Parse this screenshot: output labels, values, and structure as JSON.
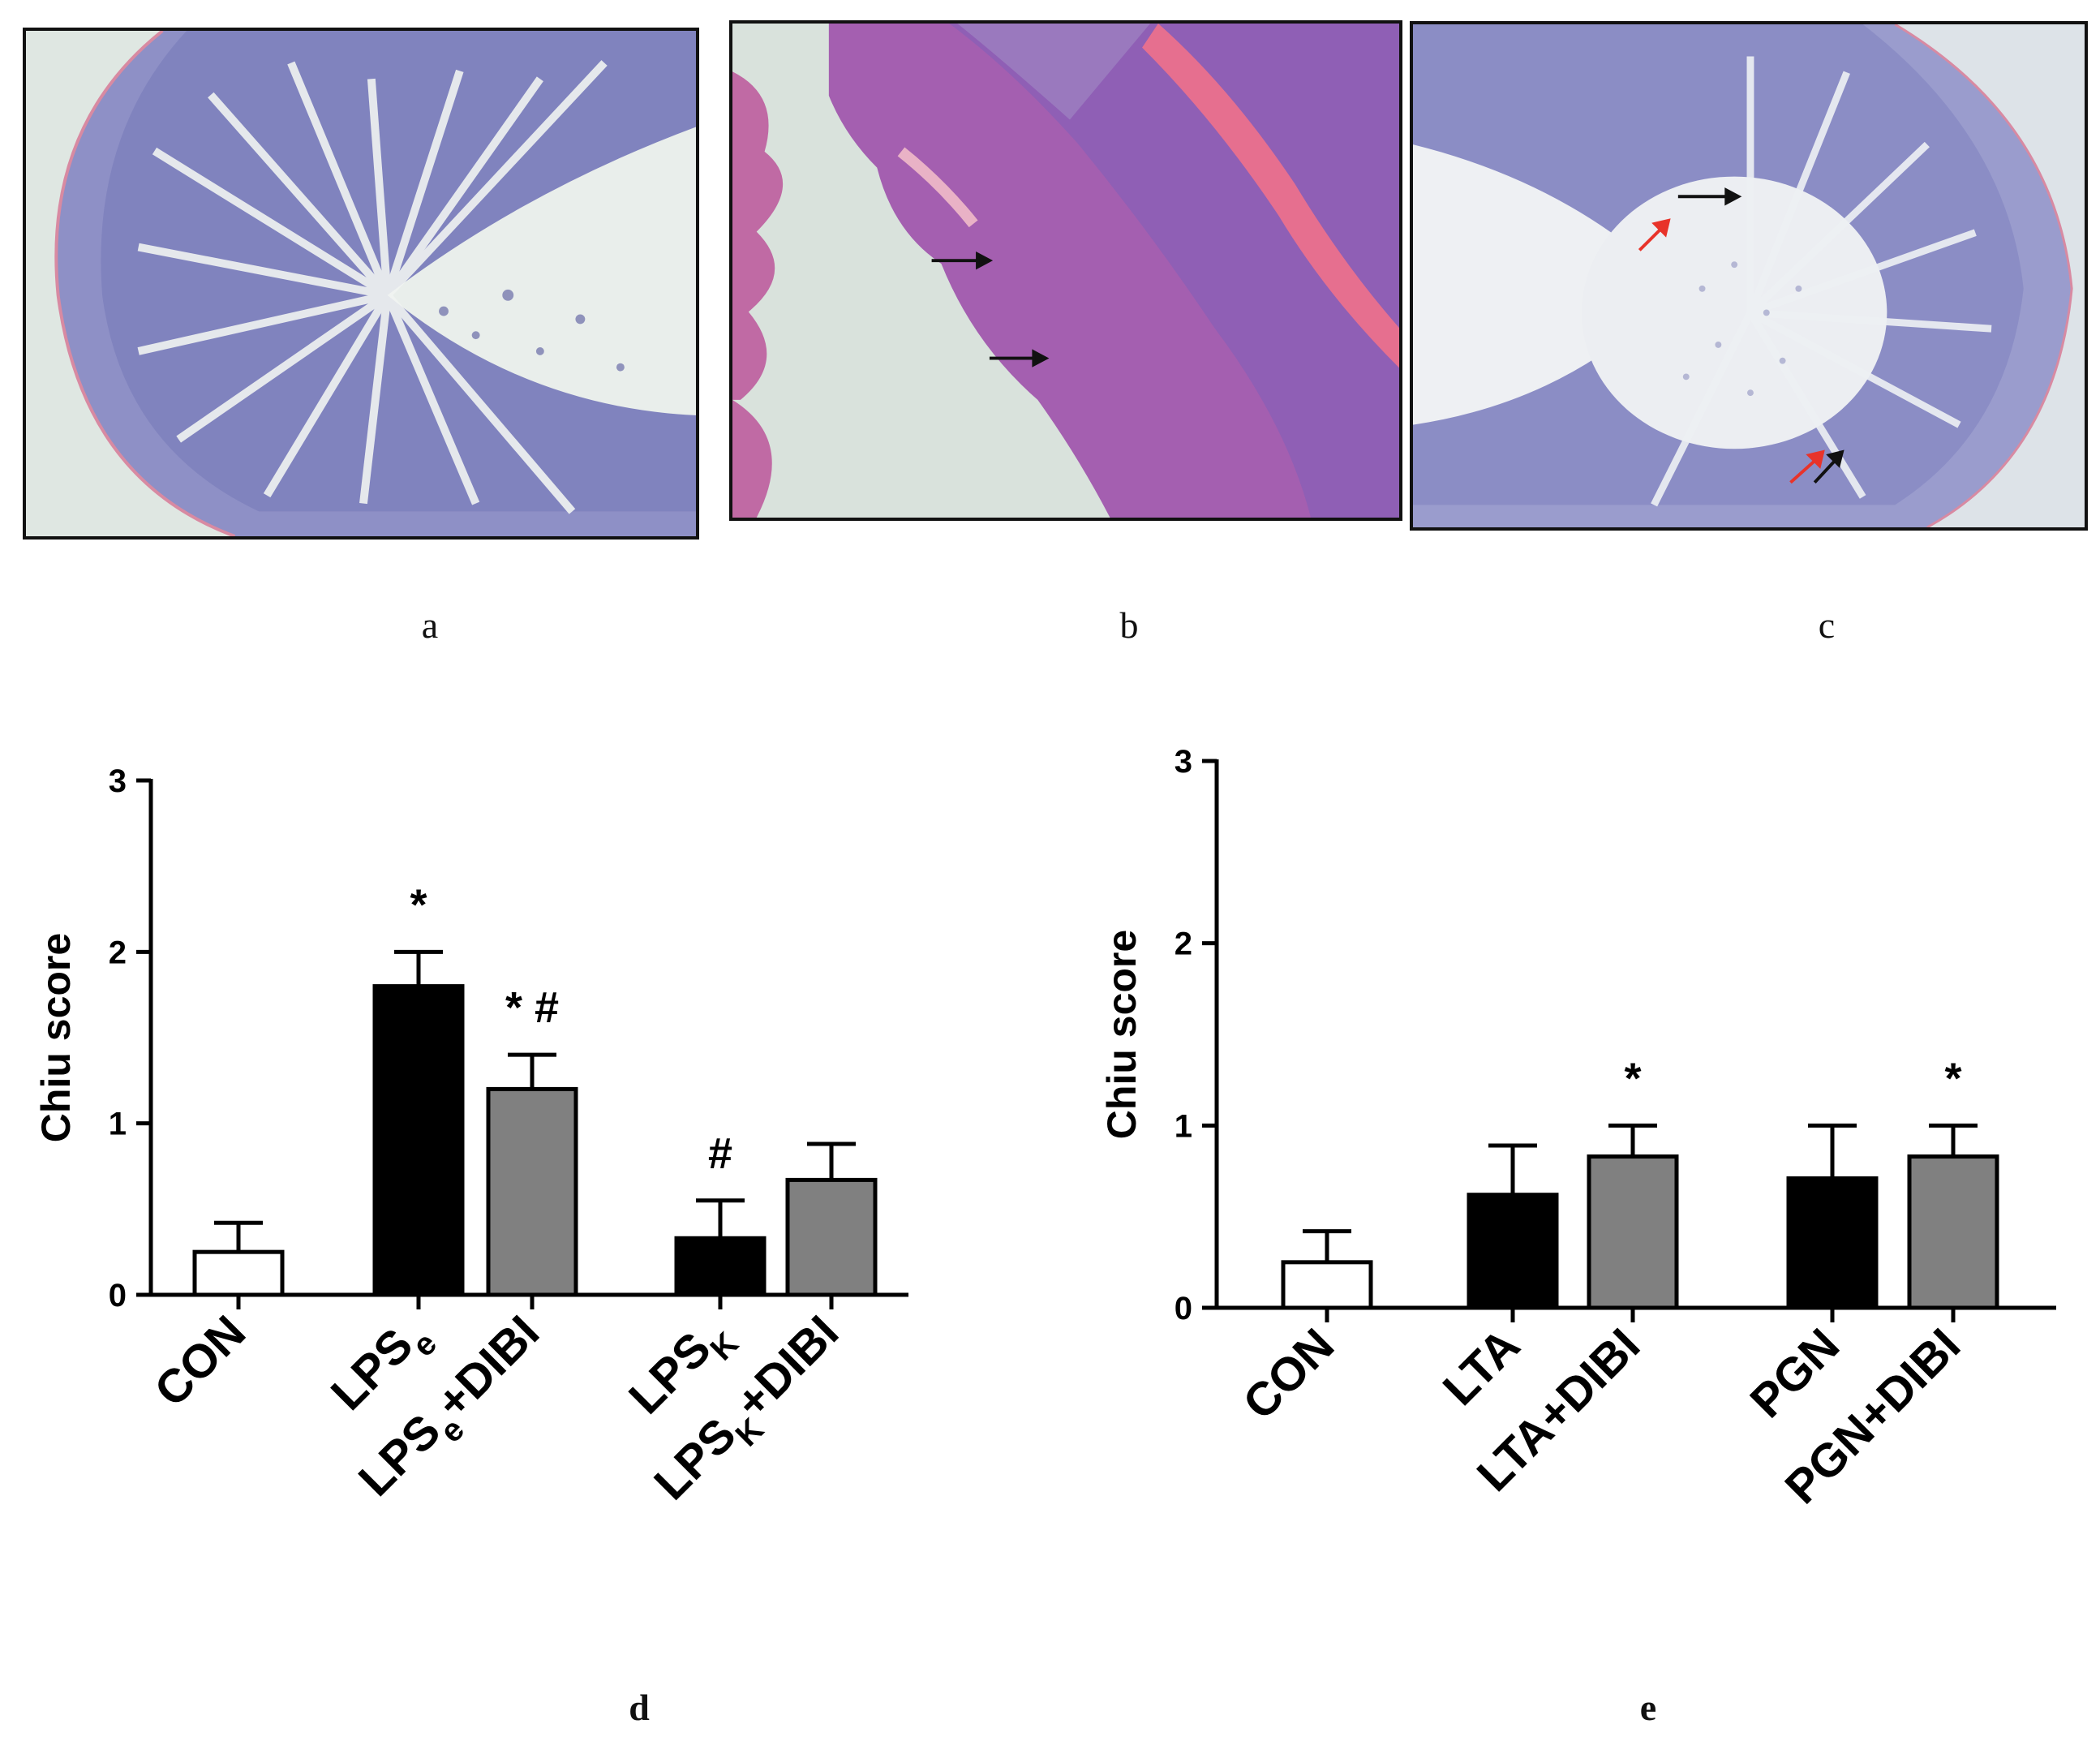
{
  "panels": [
    {
      "letter": "a"
    },
    {
      "letter": "b"
    },
    {
      "letter": "c"
    },
    {
      "letter": "d"
    },
    {
      "letter": "e"
    }
  ],
  "colors": {
    "black_bar": "#000000",
    "gray_bar": "#808080",
    "white_bar": "#ffffff",
    "he_stain_purple": "#7f7fbf",
    "he_stain_pink": "#e06a9a",
    "arrow_red": "#e8332a"
  },
  "chart_data": [
    {
      "type": "bar",
      "panel": "d",
      "ylabel": "Chiu score",
      "ylim": [
        0,
        3
      ],
      "yticks": [
        0,
        1,
        2,
        3
      ],
      "categories": [
        {
          "main": "CON",
          "sub": ""
        },
        {
          "main": "LPS",
          "sub": "e"
        },
        {
          "main": "LPS",
          "sub": "e",
          "suffix": "+DIBI"
        },
        {
          "main": "LPS",
          "sub": "K"
        },
        {
          "main": "LPS",
          "sub": "K",
          "suffix": "+DIBI"
        }
      ],
      "groups": [
        [
          0
        ],
        [
          1,
          2
        ],
        [
          3,
          4
        ]
      ],
      "values": [
        0.25,
        1.8,
        1.2,
        0.33,
        0.67
      ],
      "errors": [
        0.17,
        0.2,
        0.2,
        0.22,
        0.21
      ],
      "fills": [
        "white",
        "black",
        "gray",
        "black",
        "gray"
      ],
      "annotations": [
        "",
        "*",
        "* #",
        "#",
        ""
      ]
    },
    {
      "type": "bar",
      "panel": "e",
      "ylabel": "Chiu score",
      "ylim": [
        0,
        3
      ],
      "yticks": [
        0,
        1,
        2,
        3
      ],
      "categories": [
        {
          "main": "CON",
          "sub": ""
        },
        {
          "main": "LTA",
          "sub": ""
        },
        {
          "main": "LTA+DIBI",
          "sub": ""
        },
        {
          "main": "PGN",
          "sub": ""
        },
        {
          "main": "PGN+DIBI",
          "sub": ""
        }
      ],
      "groups": [
        [
          0
        ],
        [
          1,
          2
        ],
        [
          3,
          4
        ]
      ],
      "values": [
        0.25,
        0.62,
        0.83,
        0.71,
        0.83
      ],
      "errors": [
        0.17,
        0.27,
        0.17,
        0.29,
        0.17
      ],
      "fills": [
        "white",
        "black",
        "gray",
        "black",
        "gray"
      ],
      "annotations": [
        "",
        "",
        "*",
        "",
        "*"
      ]
    }
  ]
}
